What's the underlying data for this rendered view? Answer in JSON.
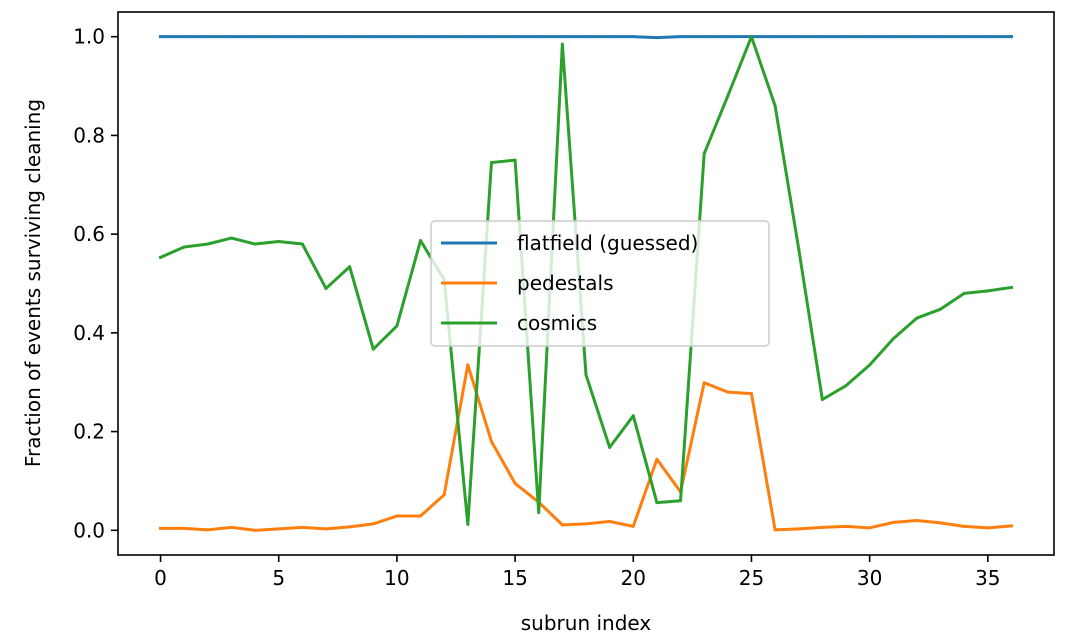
{
  "chart_data": {
    "type": "line",
    "title": "",
    "xlabel": "subrun index",
    "ylabel": "Fraction of events surviving cleaning",
    "xlim": [
      -1.8,
      37.8
    ],
    "ylim": [
      -0.05,
      1.05
    ],
    "xticks": [
      0,
      5,
      10,
      15,
      20,
      25,
      30,
      35
    ],
    "xtick_labels": [
      "0",
      "5",
      "10",
      "15",
      "20",
      "25",
      "30",
      "35"
    ],
    "yticks": [
      0.0,
      0.2,
      0.4,
      0.6,
      0.8,
      1.0
    ],
    "ytick_labels": [
      "0.0",
      "0.2",
      "0.4",
      "0.6",
      "0.8",
      "1.0"
    ],
    "grid": false,
    "legend_position": "center",
    "x": [
      0,
      1,
      2,
      3,
      4,
      5,
      6,
      7,
      8,
      9,
      10,
      11,
      12,
      13,
      14,
      15,
      16,
      17,
      18,
      19,
      20,
      21,
      22,
      23,
      24,
      25,
      26,
      27,
      28,
      29,
      30,
      31,
      32,
      33,
      34,
      35,
      36
    ],
    "series": [
      {
        "name": "flatfield (guessed)",
        "color": "#1f77b4",
        "values": [
          1.0,
          1.0,
          1.0,
          1.0,
          1.0,
          1.0,
          1.0,
          1.0,
          1.0,
          1.0,
          1.0,
          1.0,
          1.0,
          1.0,
          1.0,
          1.0,
          1.0,
          1.0,
          1.0,
          1.0,
          1.0,
          0.998,
          1.0,
          1.0,
          1.0,
          1.0,
          1.0,
          1.0,
          1.0,
          1.0,
          1.0,
          1.0,
          1.0,
          1.0,
          1.0,
          1.0,
          1.0
        ]
      },
      {
        "name": "pedestals",
        "color": "#ff7f0e",
        "values": [
          0.004,
          0.004,
          0.001,
          0.006,
          0.0,
          0.003,
          0.006,
          0.003,
          0.007,
          0.013,
          0.029,
          0.029,
          0.072,
          0.335,
          0.18,
          0.095,
          0.057,
          0.011,
          0.013,
          0.018,
          0.008,
          0.144,
          0.078,
          0.299,
          0.28,
          0.277,
          0.001,
          0.003,
          0.006,
          0.008,
          0.005,
          0.016,
          0.02,
          0.015,
          0.008,
          0.005,
          0.009
        ]
      },
      {
        "name": "cosmics",
        "color": "#2ca02c",
        "values": [
          0.553,
          0.574,
          0.58,
          0.592,
          0.58,
          0.585,
          0.58,
          0.49,
          0.534,
          0.367,
          0.414,
          0.587,
          0.508,
          0.012,
          0.745,
          0.75,
          0.036,
          0.985,
          0.315,
          0.168,
          0.232,
          0.056,
          0.06,
          0.763,
          0.88,
          1.0,
          0.86,
          0.57,
          0.265,
          0.293,
          0.335,
          0.388,
          0.43,
          0.448,
          0.48,
          0.485,
          0.492
        ]
      }
    ]
  }
}
